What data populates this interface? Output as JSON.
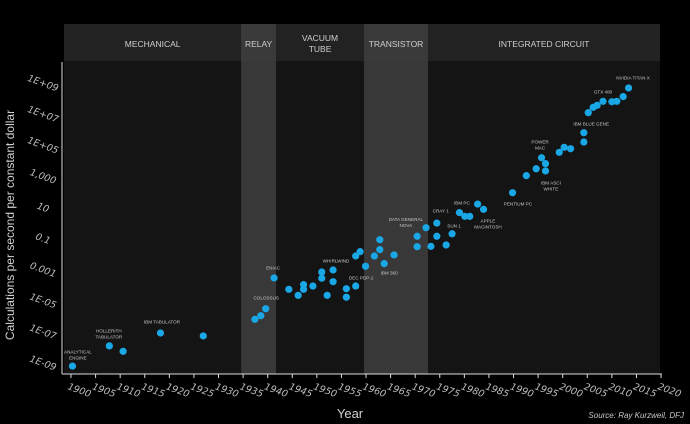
{
  "chart_data": {
    "type": "scatter",
    "title": "",
    "xlabel": "Year",
    "ylabel": "Calculations per second per constant dollar",
    "source": "Source: Ray Kurzweil, DFJ",
    "xlim": [
      1900,
      2020
    ],
    "ylim_log10": [
      -9,
      9
    ],
    "x_ticks": [
      "1900",
      "1905",
      "1910",
      "1915",
      "1920",
      "1925",
      "1930",
      "1935",
      "1940",
      "1945",
      "1950",
      "1955",
      "1960",
      "1965",
      "1970",
      "1975",
      "1980",
      "1985",
      "1990",
      "1995",
      "2000",
      "2005",
      "2010",
      "2015",
      "2020"
    ],
    "y_ticks": [
      {
        "label": "1E+09",
        "log10": 9
      },
      {
        "label": "1E+07",
        "log10": 7
      },
      {
        "label": "1E+05",
        "log10": 5
      },
      {
        "label": "1,000",
        "log10": 3
      },
      {
        "label": "10",
        "log10": 1
      },
      {
        "label": "0.1",
        "log10": -1
      },
      {
        "label": "0.001",
        "log10": -3
      },
      {
        "label": "1E-05",
        "log10": -5
      },
      {
        "label": "1E-07",
        "log10": -7
      },
      {
        "label": "1E-09",
        "log10": -9
      }
    ],
    "eras": [
      {
        "label": "MECHANICAL",
        "start": 1898.6,
        "end": 1934.6,
        "highlight": false
      },
      {
        "label": "RELAY",
        "start": 1934.6,
        "end": 1941.7,
        "highlight": true
      },
      {
        "label": "VACUUM|TUBE",
        "start": 1941.7,
        "end": 1959.6,
        "highlight": false
      },
      {
        "label": "TRANSISTOR",
        "start": 1959.6,
        "end": 1972.6,
        "highlight": true
      },
      {
        "label": "INTEGRATED CIRCUIT",
        "start": 1972.6,
        "end": 2019.8,
        "highlight": false
      }
    ],
    "point_color": "#1aa7e6",
    "points": [
      [
        1900.3,
        -9.2
      ],
      [
        1907.8,
        -7.9
      ],
      [
        1910.6,
        -8.25
      ],
      [
        1918.2,
        -7.07
      ],
      [
        1926.9,
        -7.26
      ],
      [
        1937.4,
        -6.19
      ],
      [
        1938.6,
        -5.96
      ],
      [
        1939.6,
        -5.51
      ],
      [
        1941.3,
        -3.53
      ],
      [
        1944.3,
        -4.26
      ],
      [
        1946.2,
        -4.65
      ],
      [
        1947.3,
        -3.96
      ],
      [
        1947.3,
        -4.26
      ],
      [
        1949.2,
        -4.05
      ],
      [
        1951.0,
        -3.15
      ],
      [
        1951.0,
        -3.55
      ],
      [
        1953.3,
        -3.02
      ],
      [
        1953.3,
        -3.77
      ],
      [
        1952.1,
        -4.65
      ],
      [
        1956.0,
        -4.22
      ],
      [
        1956.0,
        -4.77
      ],
      [
        1957.9,
        -4.05
      ],
      [
        1959.9,
        -2.78
      ],
      [
        1957.9,
        -2.12
      ],
      [
        1958.8,
        -1.84
      ],
      [
        1961.7,
        -2.12
      ],
      [
        1962.8,
        -1.07
      ],
      [
        1962.8,
        -1.71
      ],
      [
        1963.7,
        -2.61
      ],
      [
        1965.7,
        -2.05
      ],
      [
        1970.4,
        -0.85
      ],
      [
        1970.4,
        -1.52
      ],
      [
        1972.2,
        -0.3
      ],
      [
        1973.2,
        -1.5
      ],
      [
        1974.4,
        0.0
      ],
      [
        1974.4,
        -0.85
      ],
      [
        1976.3,
        -1.41
      ],
      [
        1977.5,
        -0.69
      ],
      [
        1979.0,
        0.67
      ],
      [
        1980.1,
        0.43
      ],
      [
        1981.1,
        0.43
      ],
      [
        1982.7,
        1.22
      ],
      [
        1983.9,
        0.88
      ],
      [
        1989.8,
        1.95
      ],
      [
        1992.6,
        3.05
      ],
      [
        1994.6,
        3.49
      ],
      [
        1995.7,
        4.2
      ],
      [
        1996.5,
        3.82
      ],
      [
        1996.5,
        3.35
      ],
      [
        1999.3,
        4.55
      ],
      [
        2000.3,
        4.87
      ],
      [
        2001.6,
        4.78
      ],
      [
        2004.3,
        5.81
      ],
      [
        2004.3,
        5.21
      ],
      [
        2005.2,
        7.1
      ],
      [
        2006.2,
        7.44
      ],
      [
        2007.0,
        7.57
      ],
      [
        2008.2,
        7.83
      ],
      [
        2010.0,
        7.8
      ],
      [
        2011.0,
        7.83
      ],
      [
        2012.3,
        8.13
      ],
      [
        2013.4,
        8.69
      ]
    ],
    "annotations": [
      {
        "text": "ANALYTICAL|ENGINE",
        "year": 1901.4,
        "log10": -8.5
      },
      {
        "text": "HOLLERITH|TABULATOR",
        "year": 1907.7,
        "log10": -7.14
      },
      {
        "text": "IBM TABULATOR",
        "year": 1918.5,
        "log10": -6.36
      },
      {
        "text": "COLOSSUS",
        "year": 1939.7,
        "log10": -4.82
      },
      {
        "text": "ENIAC",
        "year": 1941.1,
        "log10": -2.89
      },
      {
        "text": "WHIRLWIND",
        "year": 1953.9,
        "log10": -2.44
      },
      {
        "text": "DEC PDP-1",
        "year": 1959.0,
        "log10": -3.53
      },
      {
        "text": "IBM 360",
        "year": 1964.7,
        "log10": -3.21
      },
      {
        "text": "DATA GENERAL|NOVA",
        "year": 1968.1,
        "log10": 0.04
      },
      {
        "text": "CRAY 1",
        "year": 1975.2,
        "log10": 0.77
      },
      {
        "text": "SUN 1",
        "year": 1977.9,
        "log10": -0.19
      },
      {
        "text": "IBM PC",
        "year": 1979.5,
        "log10": 1.29
      },
      {
        "text": "APPLE|MACINTOSH",
        "year": 1984.8,
        "log10": -0.06
      },
      {
        "text": "PENTIUM PC",
        "year": 1990.9,
        "log10": 1.23
      },
      {
        "text": "POWER|MAC",
        "year": 1995.4,
        "log10": 5.02
      },
      {
        "text": "IBM ASCI|WHITE",
        "year": 1997.6,
        "log10": 2.38
      },
      {
        "text": "IBM BLUE GENE",
        "year": 2005.8,
        "log10": 6.37
      },
      {
        "text": "GTX 480",
        "year": 2008.2,
        "log10": 8.43
      },
      {
        "text": "NVIDIA TITAN X",
        "year": 2014.3,
        "log10": 9.33
      }
    ]
  }
}
